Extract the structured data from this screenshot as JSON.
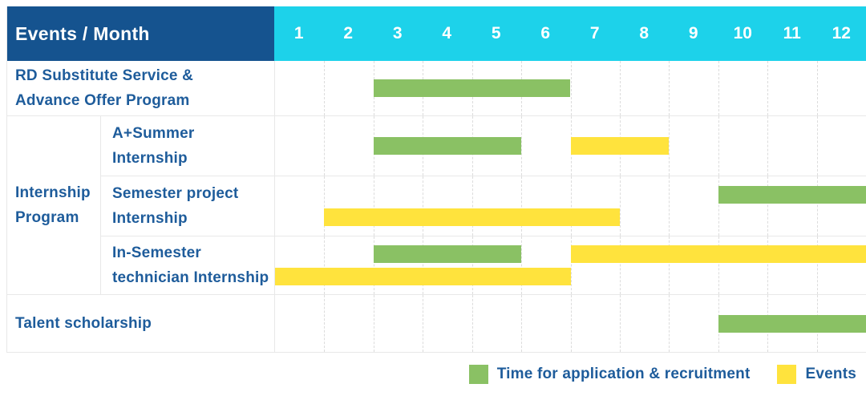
{
  "header": {
    "title": "Events / Month"
  },
  "colors": {
    "header_bg": "#15538f",
    "months_bg": "#1dd2ea",
    "label_text": "#1e5c9b",
    "recruitment": "#8ac164",
    "events": "#ffe33d",
    "grid": "#e8e8e8"
  },
  "chart_data": {
    "type": "gantt",
    "title": "Events / Month",
    "months": [
      "1",
      "2",
      "3",
      "4",
      "5",
      "6",
      "7",
      "8",
      "9",
      "10",
      "11",
      "12"
    ],
    "x_range": [
      1,
      12
    ],
    "grid": "dashed-vertical-month-lines",
    "legend_position": "bottom-right",
    "groups": [
      {
        "label_lines": [
          "Internship",
          "Program"
        ],
        "first_row": 1,
        "row_span": 3
      }
    ],
    "rows": [
      {
        "label_lines": [
          "RD Substitute Service &",
          "Advance Offer Program"
        ],
        "indented": false,
        "lines": [
          [
            {
              "series": "recruitment",
              "start_month": 3,
              "end_month": 6
            }
          ]
        ]
      },
      {
        "label_lines": [
          "A+Summer",
          "Internship"
        ],
        "indented": true,
        "lines": [
          [
            {
              "series": "recruitment",
              "start_month": 3,
              "end_month": 5
            },
            {
              "series": "events",
              "start_month": 7,
              "end_month": 8
            }
          ]
        ]
      },
      {
        "label_lines": [
          "Semester project",
          "Internship"
        ],
        "indented": true,
        "lines": [
          [
            {
              "series": "recruitment",
              "start_month": 10,
              "end_month": 12
            }
          ],
          [
            {
              "series": "events",
              "start_month": 2,
              "end_month": 7
            }
          ]
        ]
      },
      {
        "label_lines": [
          "In-Semester",
          "technician Internship"
        ],
        "indented": true,
        "lines": [
          [
            {
              "series": "recruitment",
              "start_month": 3,
              "end_month": 5
            },
            {
              "series": "events",
              "start_month": 7,
              "end_month": 12
            }
          ],
          [
            {
              "series": "events",
              "start_month": 1,
              "end_month": 6
            }
          ]
        ]
      },
      {
        "label_lines": [
          "Talent scholarship"
        ],
        "indented": false,
        "lines": [
          [
            {
              "series": "recruitment",
              "start_month": 10,
              "end_month": 12
            }
          ]
        ]
      }
    ],
    "legend": [
      {
        "series": "recruitment",
        "label": "Time for application & recruitment",
        "color": "#8ac164"
      },
      {
        "series": "events",
        "label": "Events",
        "color": "#ffe33d"
      }
    ]
  }
}
